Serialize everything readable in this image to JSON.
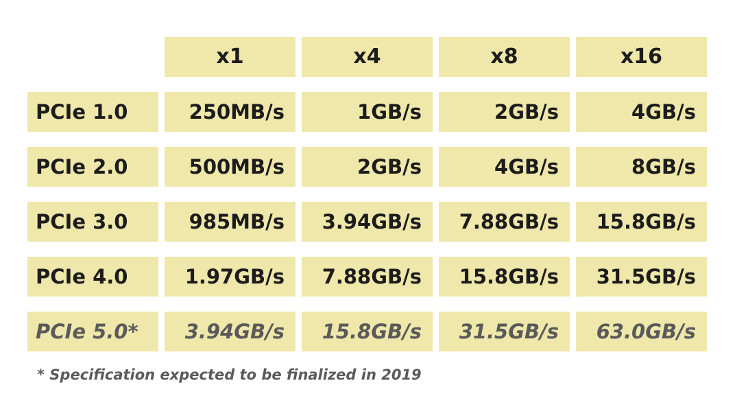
{
  "chart_data": {
    "type": "table",
    "columns": [
      "x1",
      "x4",
      "x8",
      "x16"
    ],
    "rows": [
      {
        "label": "PCIe 1.0",
        "values": [
          "250MB/s",
          "1GB/s",
          "2GB/s",
          "4GB/s"
        ],
        "future": false
      },
      {
        "label": "PCIe 2.0",
        "values": [
          "500MB/s",
          "2GB/s",
          "4GB/s",
          "8GB/s"
        ],
        "future": false
      },
      {
        "label": "PCIe 3.0",
        "values": [
          "985MB/s",
          "3.94GB/s",
          "7.88GB/s",
          "15.8GB/s"
        ],
        "future": false
      },
      {
        "label": "PCIe 4.0",
        "values": [
          "1.97GB/s",
          "7.88GB/s",
          "15.8GB/s",
          "31.5GB/s"
        ],
        "future": false
      },
      {
        "label": "PCIe 5.0*",
        "values": [
          "3.94GB/s",
          "15.8GB/s",
          "31.5GB/s",
          "63.0GB/s"
        ],
        "future": true
      }
    ],
    "footnote": "* Specification expected to be finalized in 2019"
  },
  "colors": {
    "cell_background": "#efe8aa",
    "text": "#1c1c1c",
    "future_text": "#5a5a5a"
  }
}
